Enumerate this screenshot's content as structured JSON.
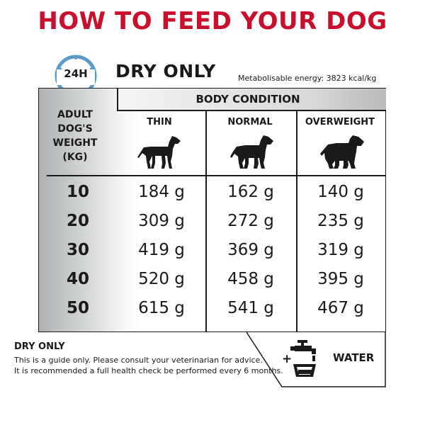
{
  "title": "HOW TO FEED YOUR DOG",
  "badge": "24H",
  "mode": "DRY ONLY",
  "energy": "Metabolisable energy: 3823 kcal/kg",
  "table": {
    "header": "BODY CONDITION",
    "weight_head_lines": [
      "ADULT",
      "DOG'S",
      "WEIGHT",
      "(KG)"
    ],
    "columns": [
      "THIN",
      "NORMAL",
      "OVERWEIGHT"
    ],
    "rows": [
      {
        "weight": "10",
        "values": [
          "184 g",
          "162 g",
          "140 g"
        ]
      },
      {
        "weight": "20",
        "values": [
          "309 g",
          "272 g",
          "235 g"
        ]
      },
      {
        "weight": "30",
        "values": [
          "419 g",
          "369 g",
          "319 g"
        ]
      },
      {
        "weight": "40",
        "values": [
          "520 g",
          "458 g",
          "395 g"
        ]
      },
      {
        "weight": "50",
        "values": [
          "615 g",
          "541 g",
          "467 g"
        ]
      }
    ]
  },
  "water": {
    "plus": "+",
    "label": "WATER",
    "icon": "tap-and-bowl-icon"
  },
  "footer": {
    "title": "DRY ONLY",
    "line1": "This is a guide only. Please consult your veterinarian for advice.",
    "line2": "It is recommended a full health check be performed every 6 months."
  },
  "colors": {
    "title": "#c8102e",
    "clock": "#5b9bc9",
    "text": "#1a1a1a"
  }
}
